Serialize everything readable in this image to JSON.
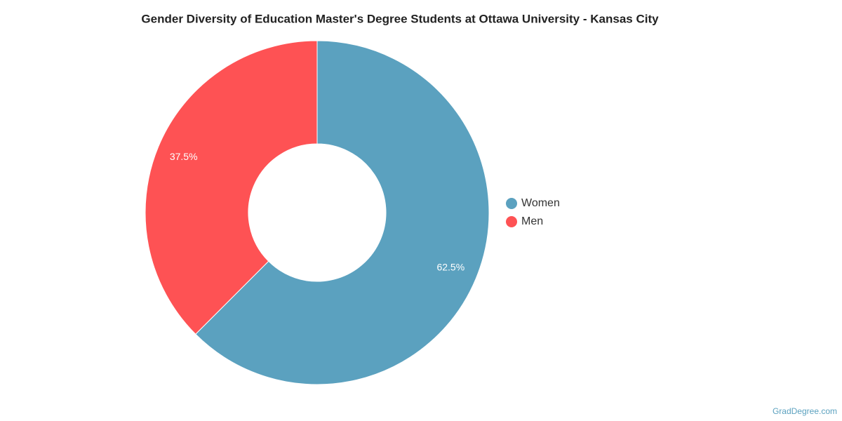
{
  "chart_data": {
    "type": "donut",
    "title": "Gender Diversity of Education Master's Degree Students at Ottawa University - Kansas City",
    "categories": [
      "Women",
      "Men"
    ],
    "values": [
      62.5,
      37.5
    ],
    "value_labels": [
      "62.5%",
      "37.5%"
    ],
    "colors": [
      "#5ba1bf",
      "#fe5254"
    ],
    "legend": "right",
    "source": "GradDegree.com"
  }
}
